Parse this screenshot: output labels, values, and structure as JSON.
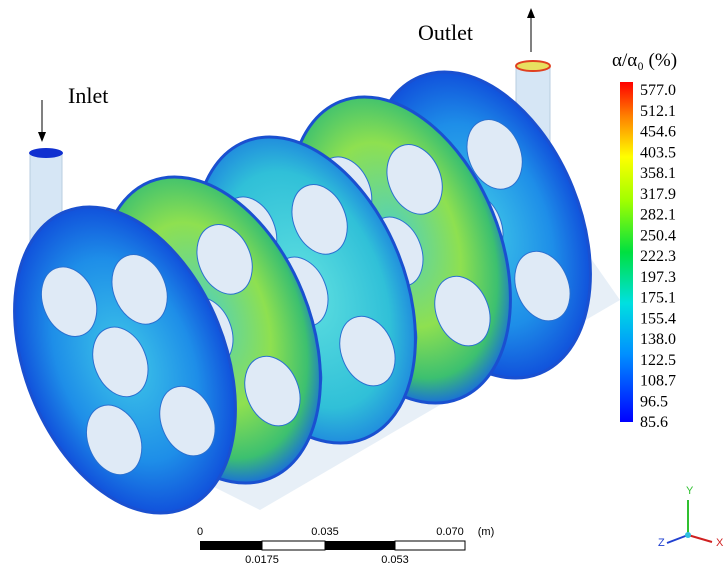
{
  "labels": {
    "inlet": "Inlet",
    "outlet": "Outlet"
  },
  "legend": {
    "title": "α/α₀ (%)",
    "values": [
      "577.0",
      "512.1",
      "454.6",
      "403.5",
      "358.1",
      "317.9",
      "282.1",
      "250.4",
      "222.3",
      "197.3",
      "175.1",
      "155.4",
      "138.0",
      "122.5",
      "108.7",
      "96.5",
      "85.6"
    ]
  },
  "scale_bar": {
    "top": [
      "0",
      "0.035",
      "0.070"
    ],
    "unit": "(m)",
    "bottom": [
      "0.0175",
      "0.053"
    ]
  },
  "axes": {
    "y": "Y",
    "z": "Z",
    "x": "X"
  }
}
